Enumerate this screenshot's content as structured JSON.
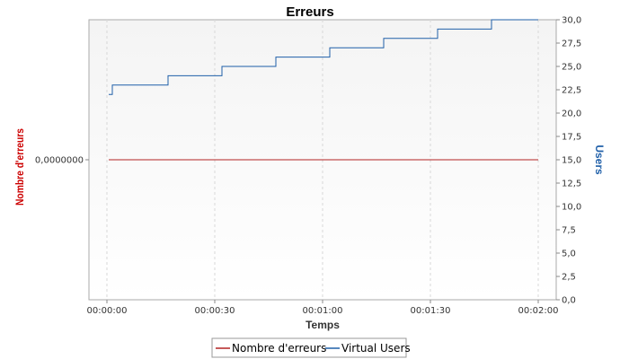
{
  "chart_data": {
    "type": "line",
    "title": "Erreurs",
    "xlabel": "Temps",
    "ylabel_left": "Nombre d'erreurs",
    "ylabel_right": "Users",
    "x_ticks": [
      {
        "t": 0,
        "label": "00:00:00"
      },
      {
        "t": 30,
        "label": "00:00:30"
      },
      {
        "t": 60,
        "label": "00:01:00"
      },
      {
        "t": 90,
        "label": "00:01:30"
      },
      {
        "t": 120,
        "label": "00:02:00"
      }
    ],
    "xlim": [
      -5,
      125
    ],
    "left_axis": {
      "ticks": [
        {
          "v": 0,
          "label": "0,0000000"
        }
      ],
      "ylim": [
        -1,
        1
      ]
    },
    "right_axis": {
      "ticks": [
        {
          "v": 0,
          "label": "0,0"
        },
        {
          "v": 2.5,
          "label": "2,5"
        },
        {
          "v": 5,
          "label": "5,0"
        },
        {
          "v": 7.5,
          "label": "7,5"
        },
        {
          "v": 10,
          "label": "10,0"
        },
        {
          "v": 12.5,
          "label": "12,5"
        },
        {
          "v": 15,
          "label": "15,0"
        },
        {
          "v": 17.5,
          "label": "17,5"
        },
        {
          "v": 20,
          "label": "20,0"
        },
        {
          "v": 22.5,
          "label": "22,5"
        },
        {
          "v": 25,
          "label": "25,0"
        },
        {
          "v": 27.5,
          "label": "27,5"
        },
        {
          "v": 30,
          "label": "30,0"
        }
      ],
      "ylim": [
        0,
        30
      ]
    },
    "grid": true,
    "series": [
      {
        "name": "Nombre d'erreurs",
        "axis": "left",
        "color": "#b22222",
        "points": [
          [
            0.5,
            0
          ],
          [
            120,
            0
          ]
        ]
      },
      {
        "name": "Virtual Users",
        "axis": "right",
        "color": "#1f5fa8",
        "points": [
          [
            0.5,
            22
          ],
          [
            1.5,
            22
          ],
          [
            1.5,
            23
          ],
          [
            17,
            23
          ],
          [
            17,
            24
          ],
          [
            32,
            24
          ],
          [
            32,
            25
          ],
          [
            47,
            25
          ],
          [
            47,
            26
          ],
          [
            62,
            26
          ],
          [
            62,
            27
          ],
          [
            77,
            27
          ],
          [
            77,
            28
          ],
          [
            92,
            28
          ],
          [
            92,
            29
          ],
          [
            107,
            29
          ],
          [
            107,
            30
          ],
          [
            120,
            30
          ]
        ]
      }
    ],
    "legend": {
      "position": "bottom",
      "entries": [
        {
          "label": "Nombre d'erreurs",
          "color": "#b22222"
        },
        {
          "label": "Virtual Users",
          "color": "#1f5fa8"
        }
      ]
    }
  }
}
